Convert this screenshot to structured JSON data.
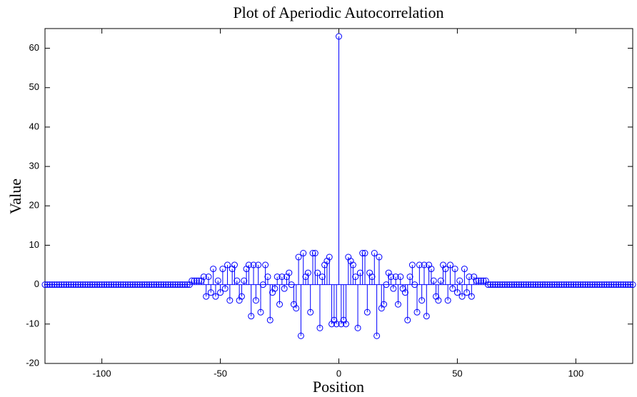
{
  "chart_data": {
    "type": "stem",
    "title": "Plot of Aperiodic Autocorrelation",
    "xlabel": "Position",
    "ylabel": "Value",
    "color": "#0000ff",
    "xlim": [
      -124,
      124
    ],
    "ylim": [
      -20,
      65
    ],
    "xticks": [
      -100,
      -50,
      0,
      50,
      100
    ],
    "yticks": [
      -20,
      -10,
      0,
      10,
      20,
      30,
      40,
      50,
      60
    ],
    "x": [
      -124,
      -123,
      -122,
      -121,
      -120,
      -119,
      -118,
      -117,
      -116,
      -115,
      -114,
      -113,
      -112,
      -111,
      -110,
      -109,
      -108,
      -107,
      -106,
      -105,
      -104,
      -103,
      -102,
      -101,
      -100,
      -99,
      -98,
      -97,
      -96,
      -95,
      -94,
      -93,
      -92,
      -91,
      -90,
      -89,
      -88,
      -87,
      -86,
      -85,
      -84,
      -83,
      -82,
      -81,
      -80,
      -79,
      -78,
      -77,
      -76,
      -75,
      -74,
      -73,
      -72,
      -71,
      -70,
      -69,
      -68,
      -67,
      -66,
      -65,
      -64,
      -63,
      -62,
      -61,
      -60,
      -59,
      -58,
      -57,
      -56,
      -55,
      -54,
      -53,
      -52,
      -51,
      -50,
      -49,
      -48,
      -47,
      -46,
      -45,
      -44,
      -43,
      -42,
      -41,
      -40,
      -39,
      -38,
      -37,
      -36,
      -35,
      -34,
      -33,
      -32,
      -31,
      -30,
      -29,
      -28,
      -27,
      -26,
      -25,
      -24,
      -23,
      -22,
      -21,
      -20,
      -19,
      -18,
      -17,
      -16,
      -15,
      -14,
      -13,
      -12,
      -11,
      -10,
      -9,
      -8,
      -7,
      -6,
      -5,
      -4,
      -3,
      -2,
      -1,
      0,
      1,
      2,
      3,
      4,
      5,
      6,
      7,
      8,
      9,
      10,
      11,
      12,
      13,
      14,
      15,
      16,
      17,
      18,
      19,
      20,
      21,
      22,
      23,
      24,
      25,
      26,
      27,
      28,
      29,
      30,
      31,
      32,
      33,
      34,
      35,
      36,
      37,
      38,
      39,
      40,
      41,
      42,
      43,
      44,
      45,
      46,
      47,
      48,
      49,
      50,
      51,
      52,
      53,
      54,
      55,
      56,
      57,
      58,
      59,
      60,
      61,
      62,
      63,
      64,
      65,
      66,
      67,
      68,
      69,
      70,
      71,
      72,
      73,
      74,
      75,
      76,
      77,
      78,
      79,
      80,
      81,
      82,
      83,
      84,
      85,
      86,
      87,
      88,
      89,
      90,
      91,
      92,
      93,
      94,
      95,
      96,
      97,
      98,
      99,
      100,
      101,
      102,
      103,
      104,
      105,
      106,
      107,
      108,
      109,
      110,
      111,
      112,
      113,
      114,
      115,
      116,
      117,
      118,
      119,
      120,
      121,
      122,
      123,
      124
    ],
    "values": [
      0,
      0,
      0,
      0,
      0,
      0,
      0,
      0,
      0,
      0,
      0,
      0,
      0,
      0,
      0,
      0,
      0,
      0,
      0,
      0,
      0,
      0,
      0,
      0,
      0,
      0,
      0,
      0,
      0,
      0,
      0,
      0,
      0,
      0,
      0,
      0,
      0,
      0,
      0,
      0,
      0,
      0,
      0,
      0,
      0,
      0,
      0,
      0,
      0,
      0,
      0,
      0,
      0,
      0,
      0,
      0,
      0,
      0,
      0,
      0,
      0,
      0,
      1,
      1,
      1,
      1,
      1,
      2,
      -3,
      2,
      -2,
      4,
      -3,
      1,
      -2,
      4,
      -1,
      5,
      -4,
      4,
      5,
      1,
      -4,
      -3,
      1,
      4,
      5,
      -8,
      5,
      -4,
      5,
      -7,
      0,
      5,
      2,
      -9,
      -2,
      -1,
      2,
      -5,
      2,
      -1,
      2,
      3,
      0,
      -5,
      -6,
      7,
      -13,
      8,
      2,
      3,
      -7,
      8,
      8,
      3,
      -11,
      2,
      5,
      6,
      7,
      -10,
      -9,
      -10,
      63,
      -10,
      -9,
      -10,
      7,
      6,
      5,
      2,
      -11,
      3,
      8,
      8,
      -7,
      3,
      2,
      8,
      -13,
      7,
      -6,
      -5,
      0,
      3,
      2,
      -1,
      2,
      -5,
      2,
      -1,
      -2,
      -9,
      2,
      5,
      0,
      -7,
      5,
      -4,
      5,
      -8,
      5,
      4,
      1,
      -3,
      -4,
      1,
      5,
      4,
      -4,
      5,
      -1,
      4,
      -2,
      1,
      -3,
      4,
      -2,
      2,
      -3,
      2,
      1,
      1,
      1,
      1,
      1,
      0,
      0,
      0,
      0,
      0,
      0,
      0,
      0,
      0,
      0,
      0,
      0,
      0,
      0,
      0,
      0,
      0,
      0,
      0,
      0,
      0,
      0,
      0,
      0,
      0,
      0,
      0,
      0,
      0,
      0,
      0,
      0,
      0,
      0,
      0,
      0,
      0,
      0,
      0,
      0,
      0,
      0,
      0,
      0,
      0,
      0,
      0,
      0,
      0,
      0,
      0,
      0,
      0,
      0,
      0,
      0,
      0,
      0,
      0,
      0,
      0,
      0
    ]
  }
}
